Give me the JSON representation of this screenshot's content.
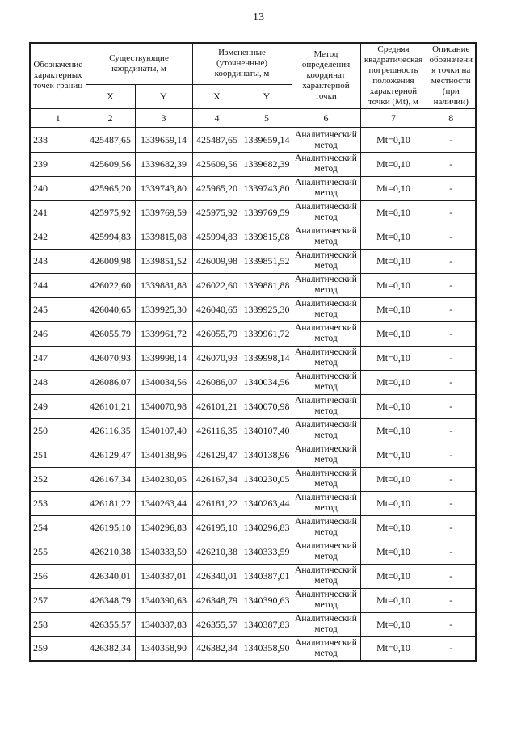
{
  "page": {
    "number": "13"
  },
  "table": {
    "headers": {
      "designation": "Обозначение характерных точек границ",
      "existing": "Существующие координаты, м",
      "changed": "Измененные (уточненные) координаты, м",
      "x": "X",
      "y": "Y",
      "method": "Метод определения координат характерной точки",
      "rms_error": "Средняя квадратическая погрешность положения характерной точки (Mt), м",
      "description": "Описание обозначения точки на местности (при наличии)"
    },
    "column_numbers": [
      "1",
      "2",
      "3",
      "4",
      "5",
      "6",
      "7",
      "8"
    ],
    "rows": [
      {
        "point": "238",
        "x_existing": "425487,65",
        "y_existing": "1339659,14",
        "x_changed": "425487,65",
        "y_changed": "1339659,14",
        "method": "Аналитический метод",
        "mt": "Mt=0,10",
        "description": "-"
      },
      {
        "point": "239",
        "x_existing": "425609,56",
        "y_existing": "1339682,39",
        "x_changed": "425609,56",
        "y_changed": "1339682,39",
        "method": "Аналитический метод",
        "mt": "Mt=0,10",
        "description": "-"
      },
      {
        "point": "240",
        "x_existing": "425965,20",
        "y_existing": "1339743,80",
        "x_changed": "425965,20",
        "y_changed": "1339743,80",
        "method": "Аналитический метод",
        "mt": "Mt=0,10",
        "description": "-"
      },
      {
        "point": "241",
        "x_existing": "425975,92",
        "y_existing": "1339769,59",
        "x_changed": "425975,92",
        "y_changed": "1339769,59",
        "method": "Аналитический метод",
        "mt": "Mt=0,10",
        "description": "-"
      },
      {
        "point": "242",
        "x_existing": "425994,83",
        "y_existing": "1339815,08",
        "x_changed": "425994,83",
        "y_changed": "1339815,08",
        "method": "Аналитический метод",
        "mt": "Mt=0,10",
        "description": "-"
      },
      {
        "point": "243",
        "x_existing": "426009,98",
        "y_existing": "1339851,52",
        "x_changed": "426009,98",
        "y_changed": "1339851,52",
        "method": "Аналитический метод",
        "mt": "Mt=0,10",
        "description": "-"
      },
      {
        "point": "244",
        "x_existing": "426022,60",
        "y_existing": "1339881,88",
        "x_changed": "426022,60",
        "y_changed": "1339881,88",
        "method": "Аналитический метод",
        "mt": "Mt=0,10",
        "description": "-"
      },
      {
        "point": "245",
        "x_existing": "426040,65",
        "y_existing": "1339925,30",
        "x_changed": "426040,65",
        "y_changed": "1339925,30",
        "method": "Аналитический метод",
        "mt": "Mt=0,10",
        "description": "-"
      },
      {
        "point": "246",
        "x_existing": "426055,79",
        "y_existing": "1339961,72",
        "x_changed": "426055,79",
        "y_changed": "1339961,72",
        "method": "Аналитический метод",
        "mt": "Mt=0,10",
        "description": "-"
      },
      {
        "point": "247",
        "x_existing": "426070,93",
        "y_existing": "1339998,14",
        "x_changed": "426070,93",
        "y_changed": "1339998,14",
        "method": "Аналитический метод",
        "mt": "Mt=0,10",
        "description": "-"
      },
      {
        "point": "248",
        "x_existing": "426086,07",
        "y_existing": "1340034,56",
        "x_changed": "426086,07",
        "y_changed": "1340034,56",
        "method": "Аналитический метод",
        "mt": "Mt=0,10",
        "description": "-"
      },
      {
        "point": "249",
        "x_existing": "426101,21",
        "y_existing": "1340070,98",
        "x_changed": "426101,21",
        "y_changed": "1340070,98",
        "method": "Аналитический метод",
        "mt": "Mt=0,10",
        "description": "-"
      },
      {
        "point": "250",
        "x_existing": "426116,35",
        "y_existing": "1340107,40",
        "x_changed": "426116,35",
        "y_changed": "1340107,40",
        "method": "Аналитический метод",
        "mt": "Mt=0,10",
        "description": "-"
      },
      {
        "point": "251",
        "x_existing": "426129,47",
        "y_existing": "1340138,96",
        "x_changed": "426129,47",
        "y_changed": "1340138,96",
        "method": "Аналитический метод",
        "mt": "Mt=0,10",
        "description": "-"
      },
      {
        "point": "252",
        "x_existing": "426167,34",
        "y_existing": "1340230,05",
        "x_changed": "426167,34",
        "y_changed": "1340230,05",
        "method": "Аналитический метод",
        "mt": "Mt=0,10",
        "description": "-"
      },
      {
        "point": "253",
        "x_existing": "426181,22",
        "y_existing": "1340263,44",
        "x_changed": "426181,22",
        "y_changed": "1340263,44",
        "method": "Аналитический метод",
        "mt": "Mt=0,10",
        "description": "-"
      },
      {
        "point": "254",
        "x_existing": "426195,10",
        "y_existing": "1340296,83",
        "x_changed": "426195,10",
        "y_changed": "1340296,83",
        "method": "Аналитический метод",
        "mt": "Mt=0,10",
        "description": "-"
      },
      {
        "point": "255",
        "x_existing": "426210,38",
        "y_existing": "1340333,59",
        "x_changed": "426210,38",
        "y_changed": "1340333,59",
        "method": "Аналитический метод",
        "mt": "Mt=0,10",
        "description": "-"
      },
      {
        "point": "256",
        "x_existing": "426340,01",
        "y_existing": "1340387,01",
        "x_changed": "426340,01",
        "y_changed": "1340387,01",
        "method": "Аналитический метод",
        "mt": "Mt=0,10",
        "description": "-"
      },
      {
        "point": "257",
        "x_existing": "426348,79",
        "y_existing": "1340390,63",
        "x_changed": "426348,79",
        "y_changed": "1340390,63",
        "method": "Аналитический метод",
        "mt": "Mt=0,10",
        "description": "-"
      },
      {
        "point": "258",
        "x_existing": "426355,57",
        "y_existing": "1340387,83",
        "x_changed": "426355,57",
        "y_changed": "1340387,83",
        "method": "Аналитический метод",
        "mt": "Mt=0,10",
        "description": "-"
      },
      {
        "point": "259",
        "x_existing": "426382,34",
        "y_existing": "1340358,90",
        "x_changed": "426382,34",
        "y_changed": "1340358,90",
        "method": "Аналитический метод",
        "mt": "Mt=0,10",
        "description": "-"
      }
    ]
  }
}
